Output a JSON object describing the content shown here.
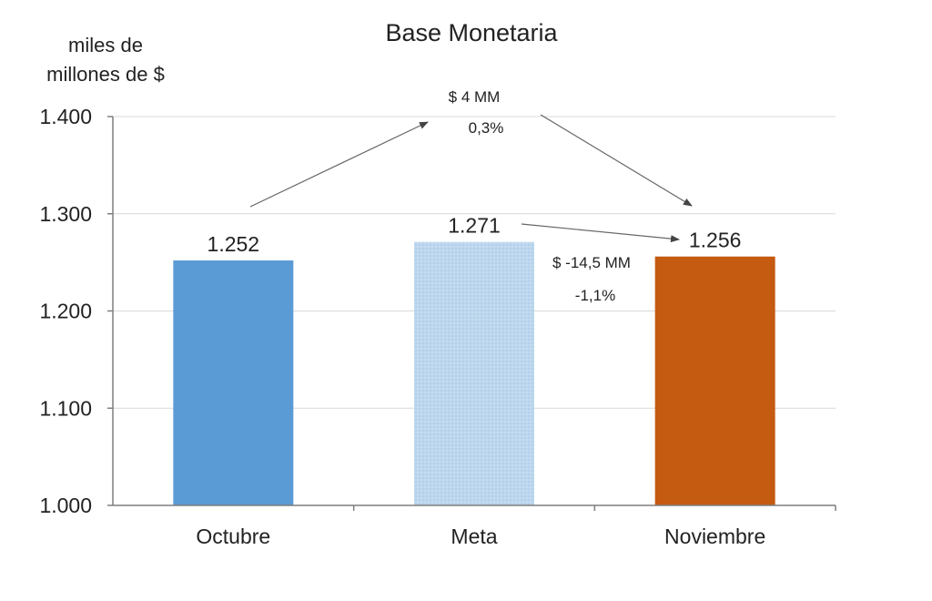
{
  "chart_data": {
    "type": "bar",
    "title": "Base Monetaria",
    "ylabel_lines": [
      "miles de",
      "millones de $"
    ],
    "xlabel": "",
    "categories": [
      "Octubre",
      "Meta",
      "Noviembre"
    ],
    "values": [
      1252,
      1271,
      1256
    ],
    "data_labels": [
      "1.252",
      "1.271",
      "1.256"
    ],
    "ylim": [
      1000,
      1400
    ],
    "yticks": [
      1000,
      1100,
      1200,
      1300,
      1400
    ],
    "ytick_labels": [
      "1.000",
      "1.100",
      "1.200",
      "1.300",
      "1.400"
    ],
    "grid": true,
    "bar_colors": [
      "#5B9BD5",
      "#BDD7EE",
      "#C55A11"
    ],
    "annotations": [
      {
        "lines": [
          "$ 4 MM",
          "0,3%"
        ],
        "from": "Octubre",
        "to": "Noviembre"
      },
      {
        "lines": [
          "$ -14,5 MM",
          "-1,1%"
        ],
        "from": "Meta",
        "to": "Noviembre"
      }
    ]
  }
}
